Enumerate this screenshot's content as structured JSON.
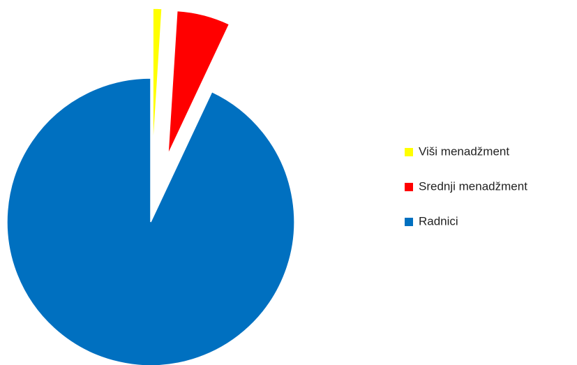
{
  "chart_data": {
    "type": "pie",
    "categories": [
      "Viši menadžment",
      "Srednji menadžment",
      "Radnici"
    ],
    "values": [
      1,
      6,
      93
    ],
    "colors": [
      "#ffff00",
      "#ff0000",
      "#0070c0"
    ],
    "legend": "right"
  }
}
